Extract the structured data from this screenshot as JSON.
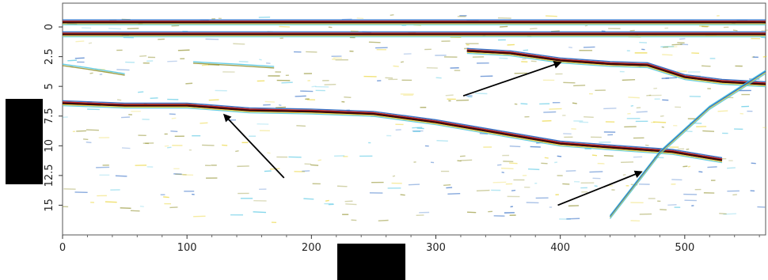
{
  "chart_data": {
    "type": "heatmap",
    "title": "",
    "xlabel": "",
    "ylabel": "",
    "xlim": [
      0,
      565
    ],
    "ylim": [
      17.5,
      -2
    ],
    "y_inverted": true,
    "x_ticks": [
      0,
      100,
      200,
      300,
      400,
      500
    ],
    "y_ticks": [
      0,
      2.5,
      5,
      7.5,
      10,
      12.5,
      15
    ],
    "x_tick_labels": [
      "0",
      "100",
      "200",
      "300",
      "400",
      "500"
    ],
    "y_tick_labels": [
      "0",
      "2.5",
      "5",
      "7.5",
      "10",
      "12.5",
      "15"
    ],
    "grid": false,
    "colors": {
      "dark": "#3a0a0a",
      "red": "#c0202a",
      "yellow": "#e8d020",
      "cyan": "#40c0e0",
      "blue": "#2060c0",
      "olive": "#8a8a20"
    },
    "reflectors": [
      {
        "name": "",
        "strength": "strong",
        "points": [
          [
            0,
            -0.4
          ],
          [
            80,
            -0.4
          ],
          [
            160,
            -0.4
          ],
          [
            240,
            -0.4
          ],
          [
            320,
            -0.4
          ],
          [
            400,
            -0.4
          ],
          [
            480,
            -0.4
          ],
          [
            565,
            -0.4
          ]
        ]
      },
      {
        "name": "",
        "strength": "strong",
        "points": [
          [
            0,
            0.6
          ],
          [
            100,
            0.6
          ],
          [
            200,
            0.6
          ],
          [
            300,
            0.6
          ],
          [
            400,
            0.6
          ],
          [
            500,
            0.6
          ],
          [
            565,
            0.6
          ]
        ]
      },
      {
        "name": "",
        "strength": "strong",
        "points": [
          [
            0,
            6.4
          ],
          [
            50,
            6.6
          ],
          [
            100,
            6.6
          ],
          [
            150,
            7.0
          ],
          [
            200,
            7.1
          ],
          [
            250,
            7.3
          ],
          [
            300,
            8.0
          ],
          [
            350,
            8.9
          ],
          [
            400,
            9.8
          ],
          [
            450,
            10.2
          ],
          [
            490,
            10.5
          ],
          [
            530,
            11.2
          ]
        ]
      },
      {
        "name": "",
        "strength": "strong",
        "points": [
          [
            325,
            2.0
          ],
          [
            360,
            2.2
          ],
          [
            400,
            2.8
          ],
          [
            440,
            3.1
          ],
          [
            470,
            3.2
          ],
          [
            500,
            4.2
          ],
          [
            530,
            4.6
          ],
          [
            565,
            4.8
          ]
        ]
      },
      {
        "name": "",
        "strength": "medium",
        "points": [
          [
            440,
            16.0
          ],
          [
            480,
            10.6
          ],
          [
            520,
            6.8
          ],
          [
            565,
            3.8
          ]
        ]
      },
      {
        "name": "",
        "strength": "faint",
        "points": [
          [
            105,
            3.0
          ],
          [
            140,
            3.2
          ],
          [
            170,
            3.4
          ]
        ]
      },
      {
        "name": "",
        "strength": "faint",
        "points": [
          [
            0,
            3.2
          ],
          [
            20,
            3.5
          ],
          [
            50,
            4.0
          ]
        ]
      }
    ],
    "annotations": [
      {
        "type": "arrow",
        "from": [
          178,
          12.7
        ],
        "to": [
          130,
          7.4
        ]
      },
      {
        "type": "arrow",
        "from": [
          322,
          5.8
        ],
        "to": [
          400,
          3.0
        ]
      },
      {
        "type": "arrow",
        "from": [
          398,
          15.0
        ],
        "to": [
          465,
          12.2
        ]
      }
    ]
  }
}
